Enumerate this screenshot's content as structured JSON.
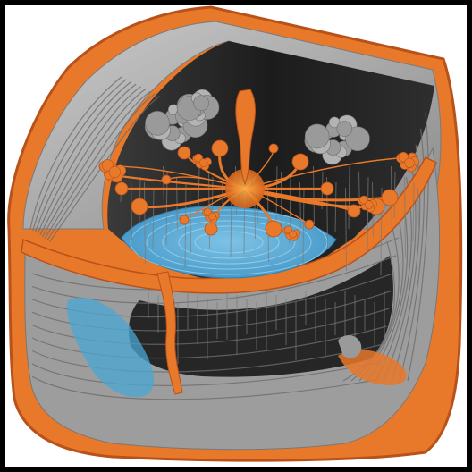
{
  "image": {
    "subject": "",
    "colors": {
      "frame": "#000000",
      "background": "#ffffff",
      "orange": "#e8782a",
      "orange_dark": "#b9521a",
      "gray_light": "#b9b9b9",
      "gray_mid": "#8e8e8e",
      "gray_dark": "#2d2d2d",
      "inner_dark": "#1e1e1e",
      "blue": "#4aa7d6",
      "blue_light": "#7ec3e6",
      "smoke": "#9a9a9a"
    }
  }
}
